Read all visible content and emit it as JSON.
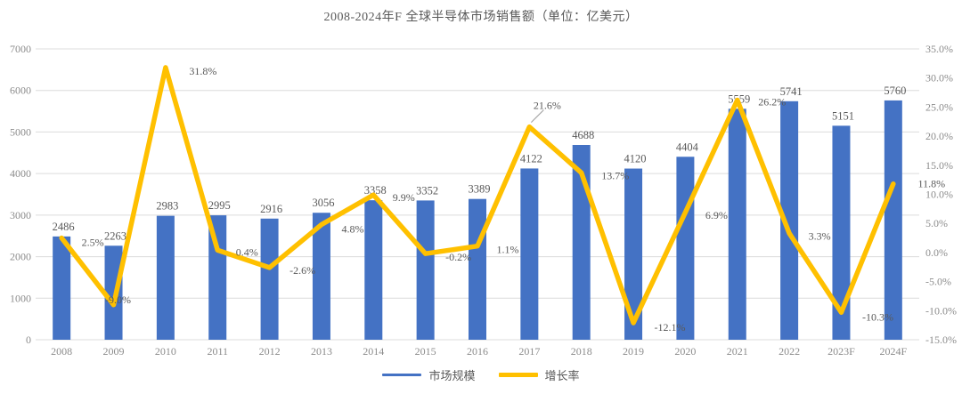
{
  "chart": {
    "title": "2008-2024年F 全球半导体市场销售额（单位：亿美元）"
  },
  "chart_data": {
    "type": "bar+line",
    "title": "2008-2024年F 全球半导体市场销售额（单位：亿美元）",
    "categories": [
      "2008",
      "2009",
      "2010",
      "2011",
      "2012",
      "2013",
      "2014",
      "2015",
      "2016",
      "2017",
      "2018",
      "2019",
      "2020",
      "2021",
      "2022",
      "2023F",
      "2024F"
    ],
    "series": [
      {
        "name": "市场规模",
        "type": "bar",
        "axis": "left",
        "color": "#4472C4",
        "values": [
          2486,
          2263,
          2983,
          2995,
          2916,
          3056,
          3358,
          3352,
          3389,
          4122,
          4688,
          4120,
          4404,
          5559,
          5741,
          5151,
          5760
        ],
        "labels": [
          "2486",
          "2263",
          "2983",
          "2995",
          "2916",
          "3056",
          "3358",
          "3352",
          "3389",
          "4122",
          "4688",
          "4120",
          "4404",
          "5559",
          "5741",
          "5151",
          "5760"
        ]
      },
      {
        "name": "增长率",
        "type": "line",
        "axis": "right",
        "color": "#FFC000",
        "values": [
          2.5,
          -9.0,
          31.8,
          0.4,
          -2.6,
          4.8,
          9.9,
          -0.2,
          1.1,
          21.6,
          13.7,
          -12.1,
          6.9,
          26.2,
          3.3,
          -10.3,
          11.8
        ],
        "labels": [
          "2.5%",
          "-9.0%",
          "31.8%",
          "0.4%",
          "-2.6%",
          "4.8%",
          "9.9%",
          "-0.2%",
          "1.1%",
          "21.6%",
          "13.7%",
          "-12.1%",
          "6.9%",
          "26.2%",
          "3.3%",
          "-10.3%",
          "11.8%"
        ]
      }
    ],
    "left_axis": {
      "min": 0,
      "max": 7000,
      "step": 1000,
      "ticks": [
        "0",
        "1000",
        "2000",
        "3000",
        "4000",
        "5000",
        "6000",
        "7000"
      ]
    },
    "right_axis": {
      "min": -15,
      "max": 35,
      "step": 5,
      "ticks": [
        "-15.0%",
        "-10.0%",
        "-5.0%",
        "0.0%",
        "5.0%",
        "10.0%",
        "15.0%",
        "20.0%",
        "25.0%",
        "30.0%",
        "35.0%"
      ]
    },
    "grid": true,
    "legend_position": "bottom"
  },
  "legend": {
    "items": [
      {
        "label": "市场规模",
        "color": "#4472C4"
      },
      {
        "label": "增长率",
        "color": "#FFC000"
      }
    ]
  },
  "colors": {
    "bar": "#4472C4",
    "line": "#FFC000",
    "grid": "#DCDCDC",
    "axis_text": "#8C8C8C",
    "data_text": "#595959",
    "leader": "#A6A6A6",
    "background": "#FFFFFF"
  }
}
